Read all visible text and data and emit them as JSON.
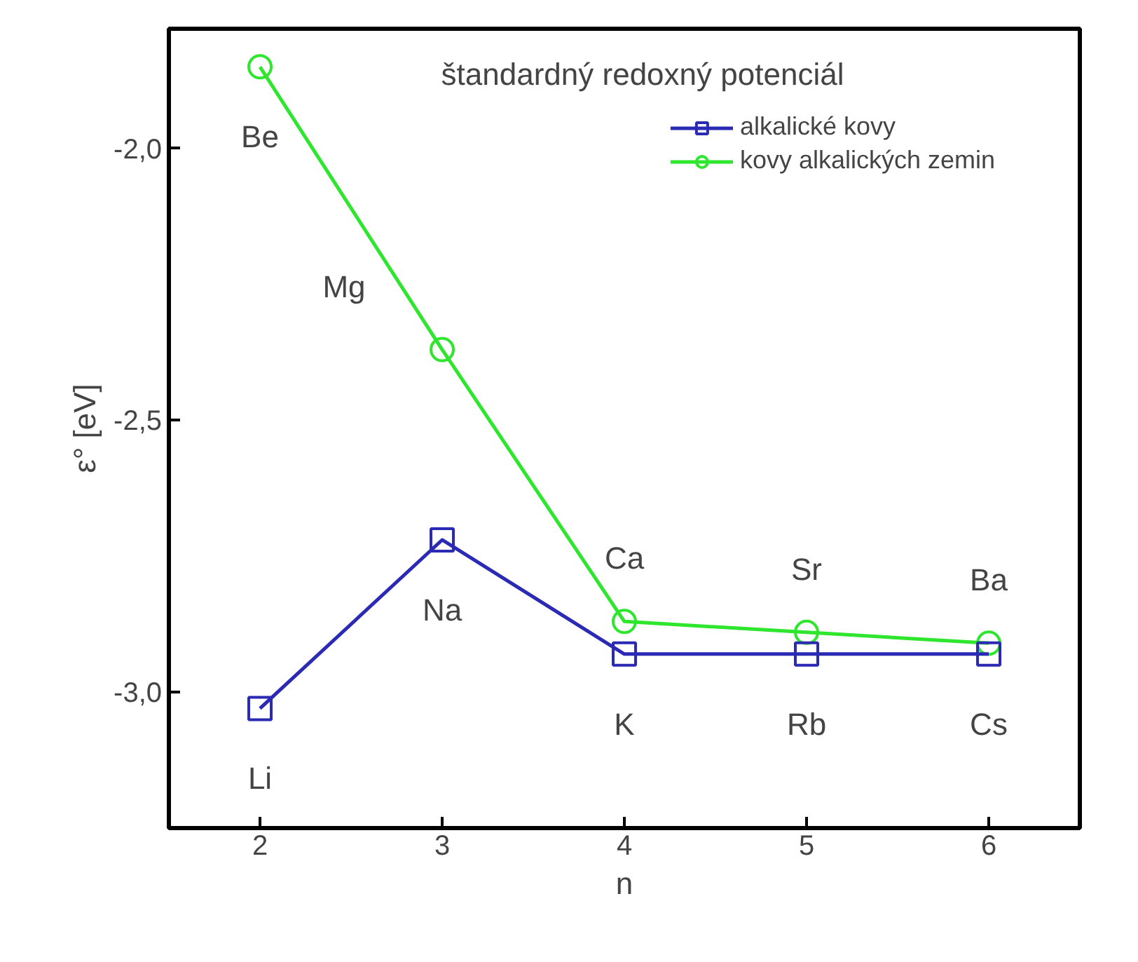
{
  "chart_data": {
    "type": "line",
    "title": "štandardný redoxný potenciál",
    "xlabel": "n",
    "ylabel": "ε° [eV]",
    "x": [
      2,
      3,
      4,
      5,
      6
    ],
    "series": [
      {
        "name": "alkalické kovy",
        "color": "#2a2ab4",
        "marker": "square",
        "values": [
          -3.03,
          -2.72,
          -2.93,
          -2.93,
          -2.93
        ]
      },
      {
        "name": "kovy alkalických zemin",
        "color": "#2ee62e",
        "marker": "circle",
        "values": [
          -1.85,
          -2.37,
          -2.87,
          -2.89,
          -2.91
        ]
      }
    ],
    "annotations": [
      {
        "text": "Be",
        "x": 2,
        "y": -1.85
      },
      {
        "text": "Mg",
        "x": 3,
        "y": -2.37
      },
      {
        "text": "Ca",
        "x": 4,
        "y": -2.87
      },
      {
        "text": "Sr",
        "x": 5,
        "y": -2.89
      },
      {
        "text": "Ba",
        "x": 6,
        "y": -2.91
      },
      {
        "text": "Li",
        "x": 2,
        "y": -3.03
      },
      {
        "text": "Na",
        "x": 3,
        "y": -2.72
      },
      {
        "text": "K",
        "x": 4,
        "y": -2.93
      },
      {
        "text": "Rb",
        "x": 5,
        "y": -2.93
      },
      {
        "text": "Cs",
        "x": 6,
        "y": -2.93
      }
    ],
    "xlim": [
      1.5,
      6.5
    ],
    "ylim": [
      -3.25,
      -1.78
    ],
    "xticks": [
      2,
      3,
      4,
      5,
      6
    ],
    "yticks": [
      {
        "value": -3.0,
        "label": "-3,0"
      },
      {
        "value": -2.5,
        "label": "-2,5"
      },
      {
        "value": -2.0,
        "label": "-2,0"
      }
    ],
    "legend": "top right",
    "grid": false,
    "line_style": "solid"
  }
}
